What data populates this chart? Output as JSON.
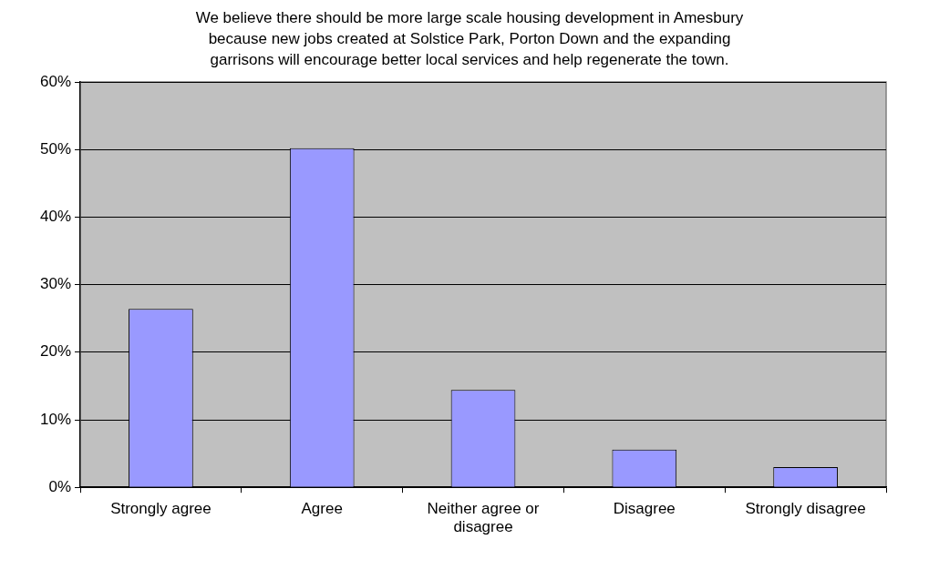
{
  "chart_data": {
    "type": "bar",
    "title": "We believe there should be more large scale housing development in Amesbury because new jobs created at Solstice Park, Porton Down and the expanding garrisons will encourage better local services and help regenerate the town.",
    "categories": [
      "Strongly agree",
      "Agree",
      "Neither agree or disagree",
      "Disagree",
      "Strongly disagree"
    ],
    "values": [
      26.4,
      50.2,
      14.4,
      5.6,
      3.0
    ],
    "color": "#9999ff",
    "ylim": [
      0,
      60
    ],
    "yticks": [
      {
        "value": 0,
        "label": "0%"
      },
      {
        "value": 10,
        "label": "10%"
      },
      {
        "value": 20,
        "label": "20%"
      },
      {
        "value": 30,
        "label": "30%"
      },
      {
        "value": 40,
        "label": "40%"
      },
      {
        "value": 50,
        "label": "50%"
      },
      {
        "value": 60,
        "label": "60%"
      }
    ],
    "grid": "y",
    "legend": false
  }
}
